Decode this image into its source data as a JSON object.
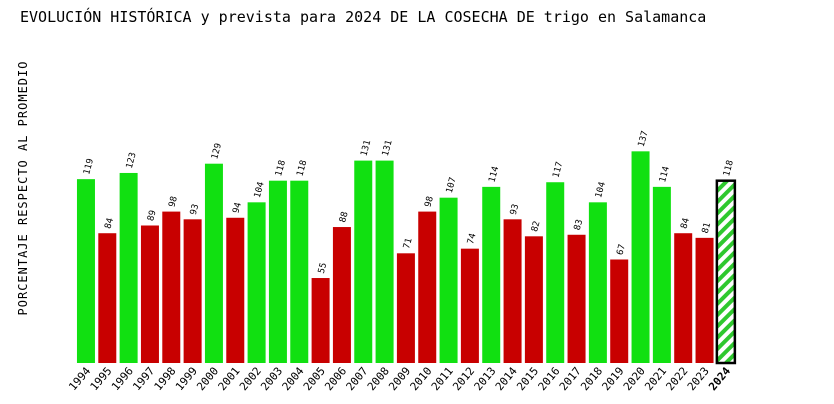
{
  "chart_data": {
    "type": "bar",
    "title": "EVOLUCIÓN HISTÓRICA y prevista para 2024 DE LA COSECHA DE trigo en Salamanca",
    "y_label": "PORCENTAJE RESPECTO AL PROMEDIO",
    "categories": [
      "1994",
      "1995",
      "1996",
      "1997",
      "1998",
      "1999",
      "2000",
      "2001",
      "2002",
      "2003",
      "2004",
      "2005",
      "2006",
      "2007",
      "2008",
      "2009",
      "2010",
      "2011",
      "2012",
      "2013",
      "2014",
      "2015",
      "2016",
      "2017",
      "2018",
      "2019",
      "2020",
      "2021",
      "2022",
      "2023",
      "2024"
    ],
    "values": [
      119,
      84,
      123,
      89,
      98,
      93,
      129,
      94,
      104,
      118,
      118,
      55,
      88,
      131,
      131,
      71,
      98,
      107,
      74,
      114,
      93,
      82,
      117,
      83,
      104,
      67,
      137,
      114,
      84,
      81,
      118
    ],
    "colors": [
      "#11e011",
      "#c80000",
      "#11e011",
      "#c80000",
      "#c80000",
      "#c80000",
      "#11e011",
      "#c80000",
      "#11e011",
      "#11e011",
      "#11e011",
      "#c80000",
      "#c80000",
      "#11e011",
      "#11e011",
      "#c80000",
      "#c80000",
      "#11e011",
      "#c80000",
      "#11e011",
      "#c80000",
      "#c80000",
      "#11e011",
      "#c80000",
      "#11e011",
      "#c80000",
      "#11e011",
      "#11e011",
      "#c80000",
      "#c80000",
      "#11e011"
    ],
    "hatched": [
      false,
      false,
      false,
      false,
      false,
      false,
      false,
      false,
      false,
      false,
      false,
      false,
      false,
      false,
      false,
      false,
      false,
      false,
      false,
      false,
      false,
      false,
      false,
      false,
      false,
      false,
      false,
      false,
      false,
      false,
      true
    ],
    "ylim": [
      0,
      200
    ]
  }
}
